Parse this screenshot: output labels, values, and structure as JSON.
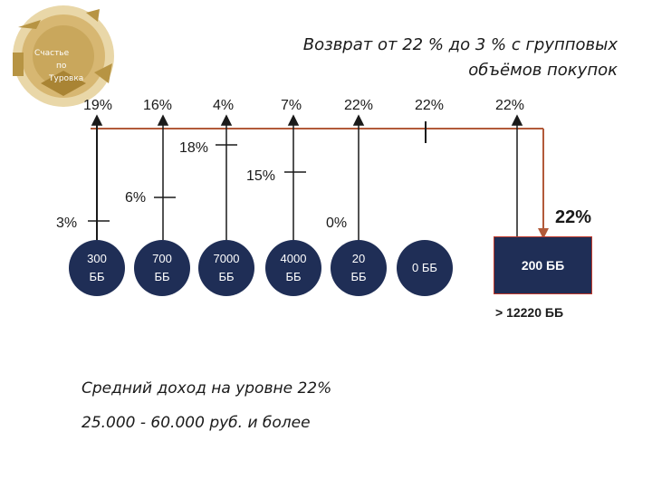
{
  "title": {
    "line1": "Возврат от 22 % до 3 % с групповых",
    "line2": "объёмов покупок"
  },
  "logo": {
    "text1": "Счастье",
    "text2": "по",
    "text3": "Туровка"
  },
  "top_percents": [
    "19%",
    "16%",
    "4%",
    "7%",
    "22%",
    "22%",
    "22%"
  ],
  "tier_percents": [
    "3%",
    "6%",
    "18%",
    "15%",
    "0%"
  ],
  "final_percent": "22%",
  "nodes": [
    {
      "line1": "300",
      "line2": "ББ"
    },
    {
      "line1": "700",
      "line2": "ББ"
    },
    {
      "line1": "7000",
      "line2": "ББ"
    },
    {
      "line1": "4000",
      "line2": "ББ"
    },
    {
      "line1": "20",
      "line2": "ББ"
    },
    {
      "line1": "0 ББ",
      "line2": ""
    }
  ],
  "box_label": "200 ББ",
  "threshold": "> 12220 ББ",
  "income": {
    "line1": "Средний доход на уровне 22%",
    "line2": "25.000 - 60.000 руб. и более"
  },
  "colors": {
    "node": "#1f2e56",
    "connector": "#b25a3a",
    "box_border": "#c0392b",
    "logo": "#c9a75c"
  }
}
